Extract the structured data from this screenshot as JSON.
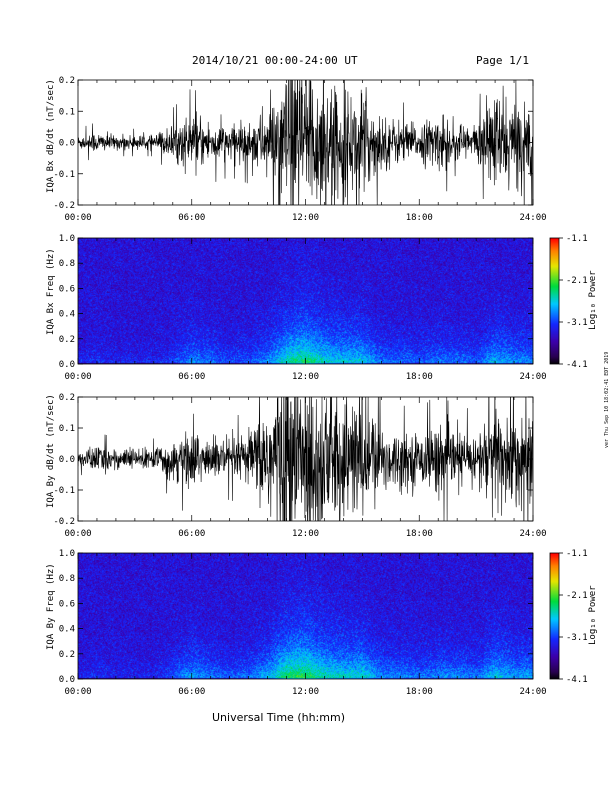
{
  "header": {
    "title": "2014/10/21   00:00-24:00 UT",
    "page": "Page 1/1"
  },
  "side_note": "ver Thu Sep 10 18:02:41 EDT 2019",
  "x_axis_title": "Universal Time (hh:mm)",
  "colorbar_label": "Log₁₀ Power",
  "chart_data": [
    {
      "type": "line",
      "ylabel": "IQA Bx dB/dt (nT/sec)",
      "xlim": [
        0,
        24
      ],
      "ylim": [
        -0.2,
        0.2
      ],
      "x_ticks": [
        "00:00",
        "06:00",
        "12:00",
        "18:00",
        "24:00"
      ],
      "y_ticks": [
        "0.2",
        "0.1",
        "0.0",
        "-0.1",
        "-0.2"
      ],
      "y_tick_values": [
        0.2,
        0.1,
        0.0,
        -0.1,
        -0.2
      ],
      "activity_level_by_hour": [
        0.02,
        0.03,
        0.02,
        0.02,
        0.02,
        0.05,
        0.08,
        0.06,
        0.05,
        0.06,
        0.1,
        0.2,
        0.25,
        0.18,
        0.14,
        0.15,
        0.08,
        0.06,
        0.05,
        0.08,
        0.06,
        0.05,
        0.15,
        0.12
      ]
    },
    {
      "type": "heatmap",
      "ylabel": "IQA Bx Freq (Hz)",
      "xlim": [
        0,
        24
      ],
      "ylim": [
        0.0,
        1.0
      ],
      "x_ticks": [
        "00:00",
        "06:00",
        "12:00",
        "18:00",
        "24:00"
      ],
      "y_ticks": [
        "1.0",
        "0.8",
        "0.6",
        "0.4",
        "0.2",
        "0.0"
      ],
      "y_tick_values": [
        1.0,
        0.8,
        0.6,
        0.4,
        0.2,
        0.0
      ],
      "colorbar_ticks": [
        "-1.1",
        "-2.1",
        "-3.1",
        "-4.1"
      ],
      "colorbar_tick_values": [
        -1.1,
        -2.1,
        -3.1,
        -4.1
      ],
      "colorbar_range": [
        -4.1,
        -1.1
      ],
      "activity_level_by_hour": [
        0.1,
        0.15,
        0.1,
        0.1,
        0.1,
        0.2,
        0.35,
        0.3,
        0.2,
        0.25,
        0.35,
        0.6,
        0.7,
        0.55,
        0.5,
        0.5,
        0.3,
        0.3,
        0.25,
        0.3,
        0.3,
        0.25,
        0.45,
        0.35
      ]
    },
    {
      "type": "line",
      "ylabel": "IQA By dB/dt (nT/sec)",
      "xlim": [
        0,
        24
      ],
      "ylim": [
        -0.2,
        0.2
      ],
      "x_ticks": [
        "00:00",
        "06:00",
        "12:00",
        "18:00",
        "24:00"
      ],
      "y_ticks": [
        "0.2",
        "0.1",
        "0.0",
        "-0.1",
        "-0.2"
      ],
      "y_tick_values": [
        0.2,
        0.1,
        0.0,
        -0.1,
        -0.2
      ],
      "activity_level_by_hour": [
        0.02,
        0.04,
        0.03,
        0.03,
        0.03,
        0.06,
        0.09,
        0.06,
        0.06,
        0.07,
        0.18,
        0.3,
        0.3,
        0.22,
        0.18,
        0.18,
        0.1,
        0.08,
        0.07,
        0.1,
        0.08,
        0.07,
        0.18,
        0.14
      ]
    },
    {
      "type": "heatmap",
      "ylabel": "IQA By Freq (Hz)",
      "xlim": [
        0,
        24
      ],
      "ylim": [
        0.0,
        1.0
      ],
      "x_ticks": [
        "00:00",
        "06:00",
        "12:00",
        "18:00",
        "24:00"
      ],
      "y_ticks": [
        "1.0",
        "0.8",
        "0.6",
        "0.4",
        "0.2",
        "0.0"
      ],
      "y_tick_values": [
        1.0,
        0.8,
        0.6,
        0.4,
        0.2,
        0.0
      ],
      "colorbar_ticks": [
        "-1.1",
        "-2.1",
        "-3.1",
        "-4.1"
      ],
      "colorbar_tick_values": [
        -1.1,
        -2.1,
        -3.1,
        -4.1
      ],
      "colorbar_range": [
        -4.1,
        -1.1
      ],
      "activity_level_by_hour": [
        0.1,
        0.15,
        0.1,
        0.1,
        0.1,
        0.25,
        0.4,
        0.3,
        0.25,
        0.3,
        0.45,
        0.7,
        0.75,
        0.6,
        0.55,
        0.55,
        0.35,
        0.35,
        0.3,
        0.35,
        0.35,
        0.3,
        0.5,
        0.4
      ]
    }
  ]
}
